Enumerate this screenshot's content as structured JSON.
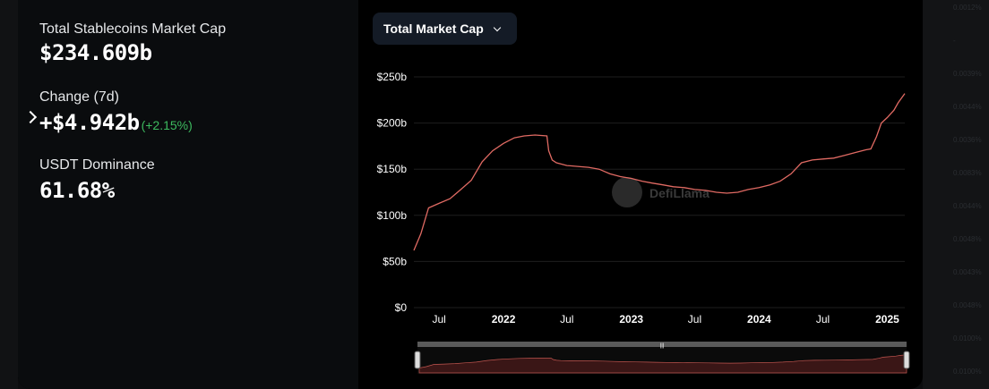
{
  "stats": {
    "market_cap_label": "Total Stablecoins Market Cap",
    "market_cap_value": "$234.609b",
    "change_label": "Change (7d)",
    "change_value": "+$4.942b",
    "change_pct": "(+2.15%)",
    "dominance_label": "USDT Dominance",
    "dominance_value": "61.68%"
  },
  "toolbar": {
    "dropdown_label": "Total Market Cap"
  },
  "watermark": "DefiLlama",
  "background_column": [
    "0.0012%",
    "-",
    "0.0039%",
    "0.0044%",
    "0.0036%",
    "0.0083%",
    "0.0044%",
    "0.0048%",
    "0.0043%",
    "0.0048%",
    "0.0100%",
    "0.0100%"
  ],
  "colors": {
    "line": "#e06a63",
    "up": "#3dba5f",
    "grid": "#1e1e1e"
  },
  "chart_data": {
    "type": "line",
    "title": "",
    "xlabel": "",
    "ylabel": "",
    "ylim": [
      0,
      250
    ],
    "y_ticks": [
      0,
      50,
      100,
      150,
      200,
      250
    ],
    "y_tick_labels": [
      "$0",
      "$50b",
      "$100b",
      "$150b",
      "$200b",
      "$250b"
    ],
    "x_ticks": [
      "2021-07-01",
      "2022-01-01",
      "2022-07-01",
      "2023-01-01",
      "2023-07-01",
      "2024-01-01",
      "2024-07-01",
      "2025-01-01"
    ],
    "x_tick_labels": [
      "Jul",
      "2022",
      "Jul",
      "2023",
      "Jul",
      "2024",
      "Jul",
      "2025"
    ],
    "xlim": [
      "2021-04-20",
      "2025-02-20"
    ],
    "series": [
      {
        "x": [
          "2021-04-20",
          "2021-05-10",
          "2021-06-01",
          "2021-07-01",
          "2021-08-01",
          "2021-09-01",
          "2021-10-01",
          "2021-11-01",
          "2021-12-01",
          "2022-01-01",
          "2022-02-01",
          "2022-03-01",
          "2022-04-01",
          "2022-05-05",
          "2022-05-10",
          "2022-05-20",
          "2022-06-01",
          "2022-07-01",
          "2022-08-01",
          "2022-09-01",
          "2022-10-01",
          "2022-11-01",
          "2022-12-01",
          "2023-01-01",
          "2023-02-01",
          "2023-03-01",
          "2023-04-01",
          "2023-05-01",
          "2023-06-01",
          "2023-07-01",
          "2023-08-01",
          "2023-09-01",
          "2023-10-01",
          "2023-11-01",
          "2023-12-01",
          "2024-01-01",
          "2024-02-01",
          "2024-03-01",
          "2024-04-01",
          "2024-05-01",
          "2024-06-01",
          "2024-07-01",
          "2024-08-01",
          "2024-09-01",
          "2024-10-01",
          "2024-11-01",
          "2024-11-15",
          "2024-12-01",
          "2024-12-15",
          "2025-01-01",
          "2025-01-20",
          "2025-02-01",
          "2025-02-20"
        ],
        "values": [
          62,
          80,
          108,
          113,
          118,
          128,
          138,
          158,
          170,
          178,
          184,
          186,
          187,
          186,
          170,
          160,
          157,
          154,
          153,
          152,
          150,
          145,
          142,
          140,
          137,
          135,
          133,
          131,
          130,
          128,
          127,
          125,
          124,
          125,
          128,
          130,
          133,
          137,
          145,
          157,
          160,
          161,
          162,
          165,
          168,
          171,
          172,
          185,
          200,
          206,
          214,
          222,
          232
        ]
      }
    ]
  }
}
